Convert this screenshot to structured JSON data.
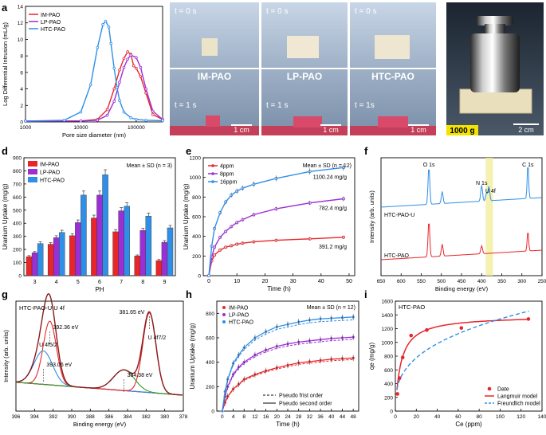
{
  "colors": {
    "red": "#e8262a",
    "purple": "#9b2fd6",
    "blue": "#2f8fe6",
    "green": "#2e9e2e",
    "brown": "#7a1f1f",
    "highlight": "#f2ee9c",
    "dark": "#222222"
  },
  "photo_b": {
    "labels": [
      "IM-PAO",
      "LP-PAO",
      "HTC-PAO"
    ],
    "t0": "t = 0 s",
    "t1": [
      "t = 1 s",
      "t = 1 s",
      "t = 1s"
    ],
    "scale": "1 cm"
  },
  "photo_c": {
    "mass": "1000 g",
    "scale": "2 cm"
  },
  "chart_data": [
    {
      "panel": "a",
      "type": "line",
      "xlabel": "Pore size diameter (nm)",
      "ylabel": "Log Differential Intrusion (mL/g)",
      "xscale": "log",
      "xlim": [
        1000,
        300000
      ],
      "ylim": [
        0,
        14
      ],
      "xticks": [
        {
          "v": 1000,
          "l": "1000"
        },
        {
          "v": 10000,
          "l": "10000"
        },
        {
          "v": 100000,
          "l": "100000"
        }
      ],
      "yticks": [
        0,
        2,
        4,
        6,
        8,
        10,
        12,
        14
      ],
      "series": [
        {
          "name": "IM-PAO",
          "color": "red",
          "x": [
            1000,
            10000,
            20000,
            30000,
            40000,
            50000,
            60000,
            70000,
            80000,
            90000,
            100000,
            120000,
            150000,
            200000,
            300000
          ],
          "y": [
            0.1,
            0.12,
            0.3,
            1.5,
            4.0,
            6.3,
            7.7,
            8.5,
            8.2,
            6.8,
            6.5,
            5.5,
            3.5,
            0.9,
            0.3
          ]
        },
        {
          "name": "LP-PAO",
          "color": "purple",
          "x": [
            1000,
            10000,
            20000,
            30000,
            40000,
            50000,
            60000,
            70000,
            80000,
            100000,
            120000,
            150000,
            200000,
            300000
          ],
          "y": [
            0.1,
            0.12,
            0.2,
            0.8,
            2.5,
            4.8,
            6.6,
            7.6,
            8.1,
            7.8,
            6.6,
            4.0,
            1.3,
            0.3
          ]
        },
        {
          "name": "HTC-PAO",
          "color": "blue",
          "x": [
            1000,
            5000,
            10000,
            15000,
            20000,
            25000,
            28000,
            32000,
            35000,
            40000,
            45000,
            50000,
            60000,
            80000,
            100000,
            150000,
            300000
          ],
          "y": [
            0.1,
            0.2,
            1.2,
            4.5,
            9.0,
            11.8,
            12.2,
            11.5,
            9.5,
            6.5,
            4.2,
            2.6,
            1.2,
            0.5,
            0.3,
            0.2,
            0.15
          ]
        }
      ]
    },
    {
      "panel": "d",
      "type": "bar",
      "note": "Mean ± SD (n = 3)",
      "xlabel": "PH",
      "ylabel": "Uranium Uptake (mg/g)",
      "categories": [
        "3",
        "4",
        "5",
        "6",
        "7",
        "8",
        "9"
      ],
      "ylim": [
        0,
        900
      ],
      "yticks": [
        0,
        100,
        200,
        300,
        400,
        500,
        600,
        700,
        800,
        900
      ],
      "series": [
        {
          "name": "IM-PAO",
          "color": "red",
          "values": [
            145,
            240,
            305,
            440,
            335,
            150,
            115
          ]
        },
        {
          "name": "LP-PAO",
          "color": "purple",
          "values": [
            175,
            290,
            405,
            615,
            495,
            345,
            255
          ]
        },
        {
          "name": "HTC-PAO",
          "color": "blue",
          "values": [
            245,
            330,
            615,
            770,
            530,
            455,
            365
          ]
        }
      ]
    },
    {
      "panel": "e",
      "type": "line",
      "note": "Mean ± SD (n = 12)",
      "xlabel": "Time (h)",
      "ylabel": "Uranium Uptake (mg/g)",
      "xlim": [
        -2,
        52
      ],
      "ylim": [
        0,
        1200
      ],
      "xticks": [
        0,
        10,
        20,
        30,
        40,
        50
      ],
      "yticks": [
        0,
        200,
        400,
        600,
        800,
        1000,
        1200
      ],
      "series": [
        {
          "name": "4ppm",
          "color": "red",
          "x": [
            0,
            1,
            2,
            4,
            6,
            8,
            10,
            12,
            16,
            24,
            36,
            48
          ],
          "y": [
            0,
            150,
            210,
            260,
            290,
            305,
            320,
            330,
            345,
            360,
            375,
            391.2
          ]
        },
        {
          "name": "8ppm",
          "color": "purple",
          "x": [
            0,
            1,
            2,
            4,
            6,
            8,
            10,
            12,
            16,
            24,
            36,
            48
          ],
          "y": [
            0,
            190,
            290,
            390,
            450,
            500,
            540,
            570,
            620,
            680,
            740,
            782.4
          ]
        },
        {
          "name": "16ppm",
          "color": "blue",
          "x": [
            0,
            1,
            2,
            4,
            6,
            8,
            10,
            12,
            16,
            24,
            36,
            48
          ],
          "y": [
            0,
            300,
            480,
            640,
            750,
            820,
            860,
            890,
            930,
            990,
            1060,
            1100.24
          ]
        }
      ],
      "annotations": [
        "1100.24 mg/g",
        "782.4 mg/g",
        "391.2 mg/g"
      ]
    },
    {
      "panel": "f",
      "type": "line",
      "xlabel": "Binding energy (eV)",
      "ylabel": "Intensity (arb. units)",
      "xlim": [
        650,
        250
      ],
      "xticks": [
        650,
        600,
        550,
        500,
        450,
        400,
        350,
        300,
        250
      ],
      "series": [
        {
          "name": "HTC-PAO-U",
          "color": "blue"
        },
        {
          "name": "HTC-PAO",
          "color": "red"
        }
      ],
      "peak_labels": [
        "O 1s",
        "N 1s",
        "U 4f",
        "C 1s"
      ]
    },
    {
      "panel": "g",
      "type": "line",
      "title": "HTC-PAO-U   U 4f",
      "xlabel": "Binding energy (eV)",
      "ylabel": "Intensity (arb. units)",
      "xlim": [
        396,
        378
      ],
      "xticks": [
        396,
        394,
        392,
        390,
        388,
        386,
        384,
        382,
        380,
        378
      ],
      "peaks": [
        {
          "label": "392.36 eV",
          "color": "red",
          "center": 392.36
        },
        {
          "label": "393.06 eV",
          "color": "blue",
          "center": 393.06
        },
        {
          "label": "381.65 eV",
          "color": "red",
          "center": 381.65
        },
        {
          "label": "384.38 eV",
          "color": "green",
          "center": 384.38
        }
      ],
      "labels": [
        "U 4f5/2",
        "U 4f7/2"
      ]
    },
    {
      "panel": "h",
      "type": "line",
      "note": "Mean ± SD (n = 12)",
      "xlabel": "Time (h)",
      "ylabel": "Uranium Uptake (mg/g)",
      "xlim": [
        -2,
        50
      ],
      "ylim": [
        0,
        900
      ],
      "xticks": [
        0,
        4,
        8,
        12,
        16,
        20,
        24,
        28,
        32,
        36,
        40,
        44,
        48
      ],
      "yticks": [
        0,
        200,
        400,
        600,
        800
      ],
      "series": [
        {
          "name": "IM-PAO",
          "color": "red",
          "x": [
            0,
            1,
            2,
            4,
            6,
            8,
            12,
            16,
            20,
            24,
            28,
            32,
            36,
            40,
            44,
            48
          ],
          "y": [
            0,
            70,
            120,
            180,
            220,
            260,
            300,
            330,
            355,
            375,
            395,
            405,
            415,
            425,
            430,
            435
          ]
        },
        {
          "name": "LP-PAO",
          "color": "purple",
          "x": [
            0,
            1,
            2,
            4,
            6,
            8,
            12,
            16,
            20,
            24,
            28,
            32,
            36,
            40,
            44,
            48
          ],
          "y": [
            0,
            120,
            200,
            300,
            360,
            400,
            460,
            500,
            530,
            550,
            565,
            575,
            585,
            595,
            600,
            605
          ]
        },
        {
          "name": "HTC-PAO",
          "color": "blue",
          "x": [
            0,
            1,
            2,
            4,
            6,
            8,
            12,
            16,
            20,
            24,
            28,
            32,
            36,
            40,
            44,
            48
          ],
          "y": [
            0,
            160,
            260,
            390,
            460,
            520,
            600,
            650,
            690,
            710,
            730,
            745,
            755,
            760,
            765,
            770
          ]
        }
      ],
      "fit_legend": [
        "Pseudo frist order",
        "Pseudo second order"
      ]
    },
    {
      "panel": "i",
      "type": "scatter",
      "title": "HTC-PAO",
      "xlabel": "Ce (ppm)",
      "ylabel": "qe (mg/g)",
      "xlim": [
        0,
        140
      ],
      "ylim": [
        0,
        1600
      ],
      "xticks": [
        0,
        20,
        40,
        60,
        80,
        100,
        120,
        140
      ],
      "yticks": [
        0,
        200,
        400,
        600,
        800,
        1000,
        1200,
        1400,
        1600
      ],
      "points": {
        "x": [
          2,
          4,
          7,
          15,
          30,
          63,
          127
        ],
        "y": [
          250,
          480,
          780,
          1100,
          1180,
          1210,
          1340
        ]
      },
      "legend": [
        "Date",
        "Langmuir model",
        "Freundlich model"
      ]
    }
  ]
}
